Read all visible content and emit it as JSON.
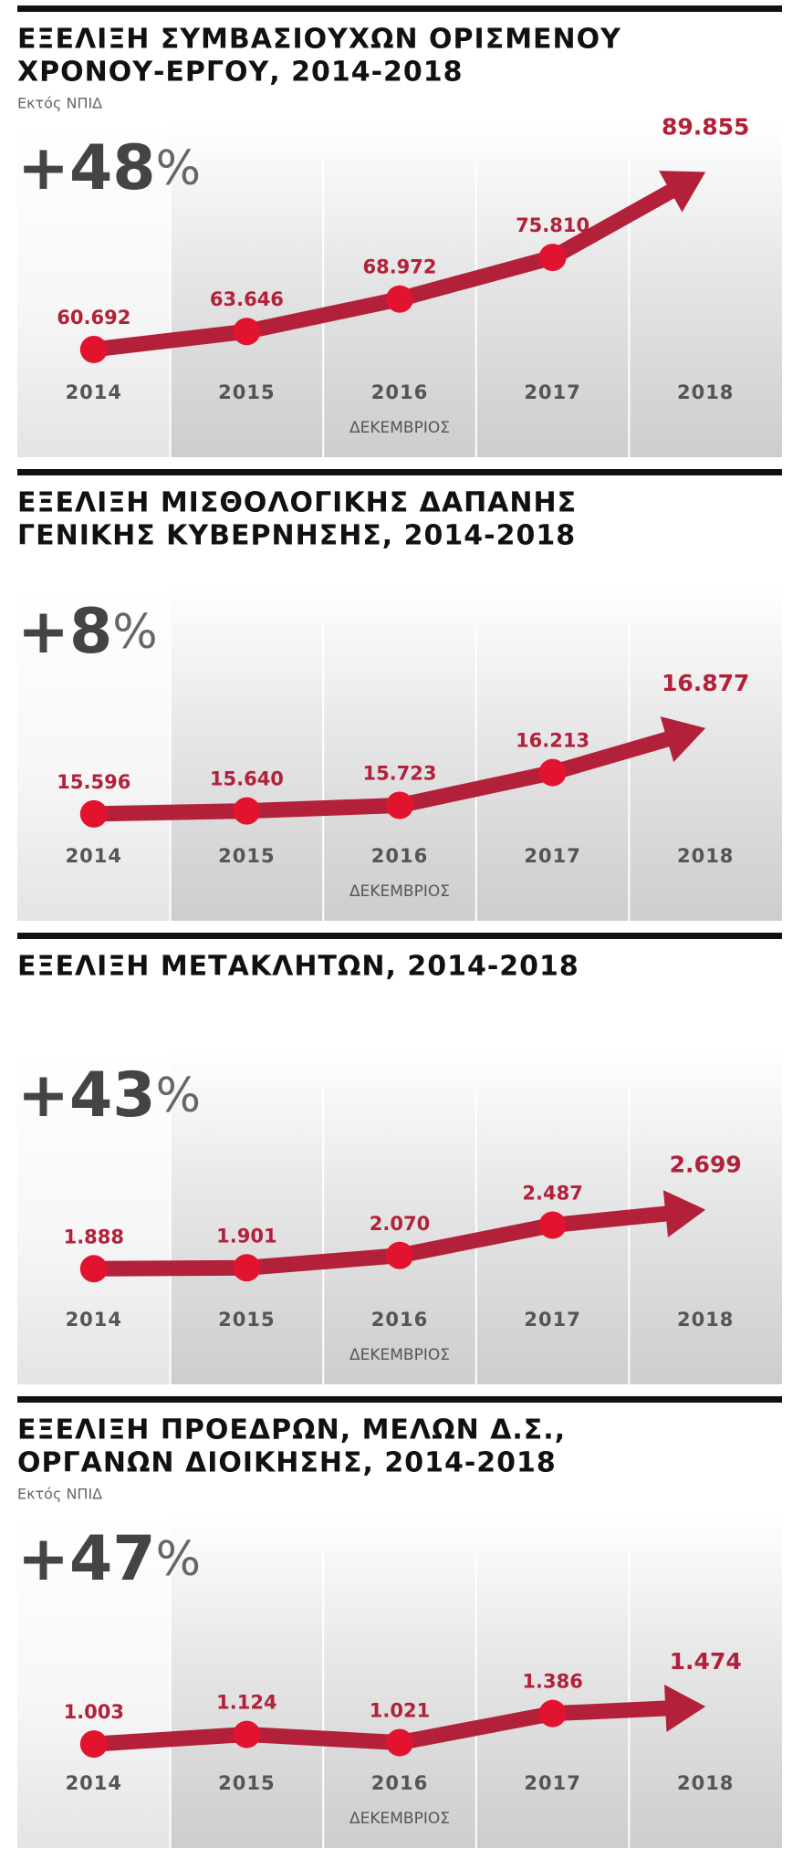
{
  "chart_data": [
    {
      "type": "line",
      "title": [
        "ΕΞΕΛΙΞΗ ΣΥΜΒΑΣΙΟΥΧΩΝ ΟΡΙΣΜΕΝΟΥ",
        "ΧΡΟΝΟΥ-ΕΡΓΟΥ, 2014-2018"
      ],
      "subtitle": "Εκτός ΝΠΙΔ",
      "change": "+48",
      "change_unit": "%",
      "x_label": "ΔΕΚΕΜΒΡΙΟΣ",
      "categories": [
        "2014",
        "2015",
        "2016",
        "2017",
        "2018"
      ],
      "values": [
        60692,
        63646,
        68972,
        75810,
        89855
      ],
      "value_labels": [
        "60.692",
        "63.646",
        "68.972",
        "75.810",
        "89.855"
      ],
      "color": "#b3203a",
      "marker_color": "#e2132f",
      "ylim": [
        43000,
        98000
      ]
    },
    {
      "type": "line",
      "title": [
        "ΕΞΕΛΙΞΗ ΜΙΣΘΟΛΟΓΙΚΗΣ ΔΑΠΑΝΗΣ",
        "ΓΕΝΙΚΗΣ ΚΥΒΕΡΝΗΣΗΣ, 2014-2018"
      ],
      "change": "+8",
      "change_unit": "%",
      "x_label": "ΔΕΚΕΜΒΡΙΟΣ",
      "categories": [
        "2014",
        "2015",
        "2016",
        "2017",
        "2018"
      ],
      "values": [
        15596,
        15640,
        15723,
        16213,
        16877
      ],
      "value_labels": [
        "15.596",
        "15.640",
        "15.723",
        "16.213",
        "16.877"
      ],
      "color": "#b3203a",
      "marker_color": "#e2132f",
      "ylim": [
        14000,
        19000
      ]
    },
    {
      "type": "line",
      "title": [
        "ΕΞΕΛΙΞΗ ΜΕΤΑΚΛΗΤΩΝ, 2014-2018"
      ],
      "change": "+43",
      "change_unit": "%",
      "x_label": "ΔΕΚΕΜΒΡΙΟΣ",
      "categories": [
        "2014",
        "2015",
        "2016",
        "2017",
        "2018"
      ],
      "values": [
        1888,
        1901,
        2070,
        2487,
        2699
      ],
      "value_labels": [
        "1.888",
        "1.901",
        "2.070",
        "2.487",
        "2.699"
      ],
      "color": "#b3203a",
      "marker_color": "#e2132f",
      "ylim": [
        300,
        4900
      ]
    },
    {
      "type": "line",
      "title": [
        "ΕΞΕΛΙΞΗ ΠΡΟΕΔΡΩΝ, ΜΕΛΩΝ Δ.Σ.,",
        "ΟΡΓΑΝΩΝ ΔΙΟΙΚΗΣΗΣ, 2014-2018"
      ],
      "subtitle": "Εκτός ΝΠΙΔ",
      "change": "+47",
      "change_unit": "%",
      "x_label": "ΔΕΚΕΜΒΡΙΟΣ",
      "categories": [
        "2014",
        "2015",
        "2016",
        "2017",
        "2018"
      ],
      "values": [
        1003,
        1124,
        1021,
        1386,
        1474
      ],
      "value_labels": [
        "1.003",
        "1.124",
        "1.021",
        "1.386",
        "1.474"
      ],
      "color": "#b3203a",
      "marker_color": "#e2132f",
      "ylim": [
        -300,
        3900
      ]
    }
  ]
}
